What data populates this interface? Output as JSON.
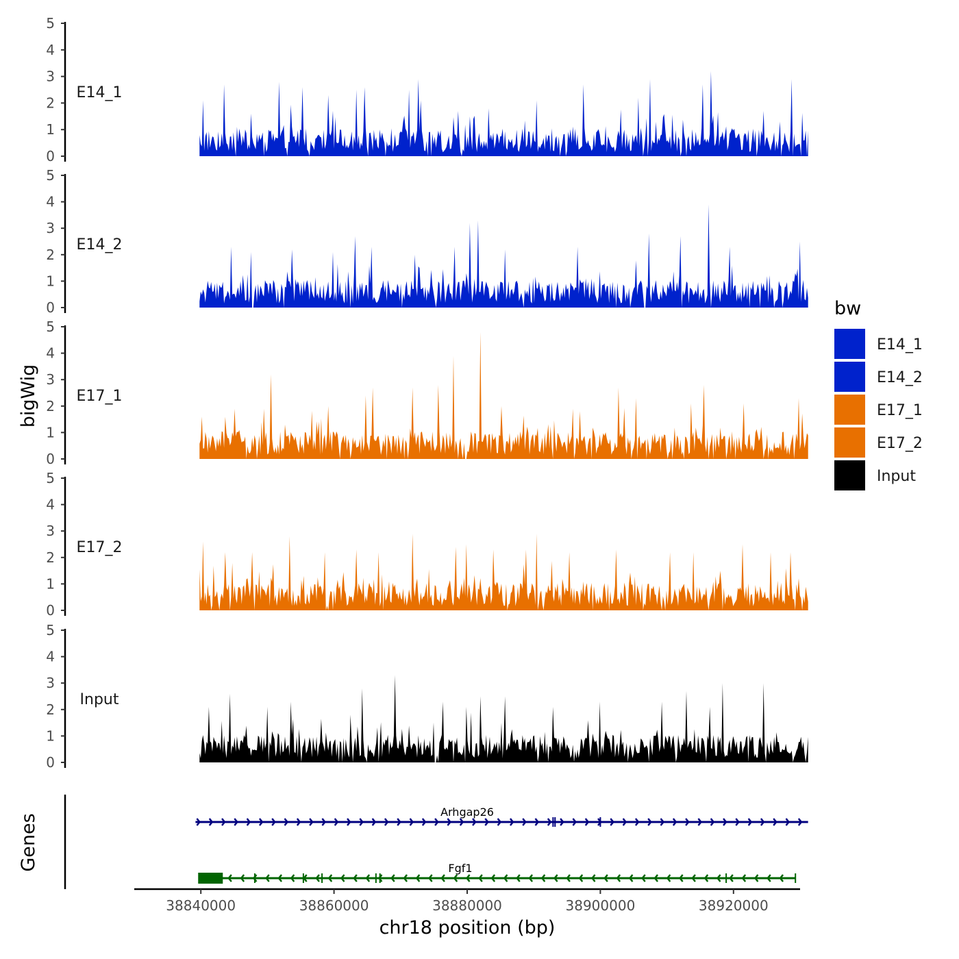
{
  "chart_data": {
    "type": "area",
    "title": "",
    "ylabel": "bigWig",
    "xlabel": "chr18 position (bp)",
    "genes_label": "Genes",
    "ylim": [
      0,
      5
    ],
    "yticks": [
      0,
      1,
      2,
      3,
      4,
      5
    ],
    "xlim": [
      38830000,
      38930000
    ],
    "data_range": [
      38839800,
      38931200
    ],
    "xticks": [
      38840000,
      38860000,
      38880000,
      38900000,
      38920000
    ],
    "xtick_labels": [
      "38840000",
      "38860000",
      "38880000",
      "38900000",
      "38920000"
    ],
    "legend": {
      "title": "bw",
      "entries": [
        {
          "name": "E14_1",
          "color": "#0022CC"
        },
        {
          "name": "E14_2",
          "color": "#0022CC"
        },
        {
          "name": "E17_1",
          "color": "#E87000"
        },
        {
          "name": "E17_2",
          "color": "#E87000"
        },
        {
          "name": "Input",
          "color": "#000000"
        }
      ]
    },
    "series": [
      {
        "name": "E14_1",
        "color": "#0022CC",
        "peaks": [
          {
            "x": 38840300,
            "y": 2.1
          },
          {
            "x": 38843500,
            "y": 2.7
          },
          {
            "x": 38847600,
            "y": 1.6
          },
          {
            "x": 38851700,
            "y": 2.8
          },
          {
            "x": 38855200,
            "y": 2.6
          },
          {
            "x": 38859100,
            "y": 2.3
          },
          {
            "x": 38863400,
            "y": 2.5
          },
          {
            "x": 38864500,
            "y": 2.6
          },
          {
            "x": 38871200,
            "y": 2.5
          },
          {
            "x": 38872600,
            "y": 2.9
          },
          {
            "x": 38873100,
            "y": 2.1
          },
          {
            "x": 38878700,
            "y": 1.7
          },
          {
            "x": 38883200,
            "y": 1.8
          },
          {
            "x": 38890500,
            "y": 2.1
          },
          {
            "x": 38897500,
            "y": 2.7
          },
          {
            "x": 38905700,
            "y": 2.2
          },
          {
            "x": 38907400,
            "y": 2.9
          },
          {
            "x": 38915300,
            "y": 2.7
          },
          {
            "x": 38916600,
            "y": 3.2
          },
          {
            "x": 38924600,
            "y": 1.7
          },
          {
            "x": 38928800,
            "y": 2.9
          }
        ]
      },
      {
        "name": "E14_2",
        "color": "#0022CC",
        "peaks": [
          {
            "x": 38844500,
            "y": 2.3
          },
          {
            "x": 38847600,
            "y": 2.1
          },
          {
            "x": 38853700,
            "y": 2.2
          },
          {
            "x": 38859800,
            "y": 2.1
          },
          {
            "x": 38863200,
            "y": 2.7
          },
          {
            "x": 38865600,
            "y": 2.3
          },
          {
            "x": 38872200,
            "y": 2.0
          },
          {
            "x": 38878100,
            "y": 2.3
          },
          {
            "x": 38880400,
            "y": 3.2
          },
          {
            "x": 38881700,
            "y": 3.3
          },
          {
            "x": 38885600,
            "y": 2.2
          },
          {
            "x": 38896500,
            "y": 2.3
          },
          {
            "x": 38907300,
            "y": 2.8
          },
          {
            "x": 38912100,
            "y": 2.7
          },
          {
            "x": 38916300,
            "y": 3.9
          },
          {
            "x": 38919400,
            "y": 2.3
          },
          {
            "x": 38929900,
            "y": 2.5
          }
        ]
      },
      {
        "name": "E17_1",
        "color": "#E87000",
        "peaks": [
          {
            "x": 38840100,
            "y": 1.6
          },
          {
            "x": 38845100,
            "y": 1.9
          },
          {
            "x": 38849400,
            "y": 1.9
          },
          {
            "x": 38850500,
            "y": 3.2
          },
          {
            "x": 38859200,
            "y": 2.0
          },
          {
            "x": 38864700,
            "y": 2.4
          },
          {
            "x": 38865900,
            "y": 2.7
          },
          {
            "x": 38871800,
            "y": 2.7
          },
          {
            "x": 38875700,
            "y": 2.8
          },
          {
            "x": 38877900,
            "y": 3.9
          },
          {
            "x": 38882000,
            "y": 4.8
          },
          {
            "x": 38885100,
            "y": 2.0
          },
          {
            "x": 38895900,
            "y": 1.9
          },
          {
            "x": 38902800,
            "y": 2.7
          },
          {
            "x": 38905300,
            "y": 2.3
          },
          {
            "x": 38913700,
            "y": 2.1
          },
          {
            "x": 38915500,
            "y": 2.8
          },
          {
            "x": 38921600,
            "y": 2.1
          },
          {
            "x": 38929800,
            "y": 2.3
          }
        ]
      },
      {
        "name": "E17_2",
        "color": "#E87000",
        "peaks": [
          {
            "x": 38840300,
            "y": 2.6
          },
          {
            "x": 38843700,
            "y": 2.2
          },
          {
            "x": 38847700,
            "y": 2.2
          },
          {
            "x": 38853400,
            "y": 2.8
          },
          {
            "x": 38858600,
            "y": 2.2
          },
          {
            "x": 38863400,
            "y": 2.3
          },
          {
            "x": 38866700,
            "y": 2.2
          },
          {
            "x": 38871800,
            "y": 2.9
          },
          {
            "x": 38878300,
            "y": 2.4
          },
          {
            "x": 38879800,
            "y": 2.5
          },
          {
            "x": 38883900,
            "y": 2.3
          },
          {
            "x": 38888800,
            "y": 2.3
          },
          {
            "x": 38890500,
            "y": 2.9
          },
          {
            "x": 38895400,
            "y": 2.2
          },
          {
            "x": 38902300,
            "y": 2.3
          },
          {
            "x": 38910500,
            "y": 2.2
          },
          {
            "x": 38913900,
            "y": 2.2
          },
          {
            "x": 38921300,
            "y": 2.5
          },
          {
            "x": 38925600,
            "y": 2.2
          },
          {
            "x": 38928600,
            "y": 2.2
          }
        ]
      },
      {
        "name": "Input",
        "color": "#000000",
        "peaks": [
          {
            "x": 38841200,
            "y": 2.1
          },
          {
            "x": 38844300,
            "y": 2.6
          },
          {
            "x": 38850000,
            "y": 2.1
          },
          {
            "x": 38853500,
            "y": 2.3
          },
          {
            "x": 38862400,
            "y": 1.8
          },
          {
            "x": 38864200,
            "y": 2.8
          },
          {
            "x": 38869200,
            "y": 3.3
          },
          {
            "x": 38876400,
            "y": 2.3
          },
          {
            "x": 38879800,
            "y": 2.1
          },
          {
            "x": 38882000,
            "y": 2.5
          },
          {
            "x": 38885700,
            "y": 2.5
          },
          {
            "x": 38892900,
            "y": 2.1
          },
          {
            "x": 38900000,
            "y": 2.3
          },
          {
            "x": 38909200,
            "y": 2.3
          },
          {
            "x": 38913000,
            "y": 2.7
          },
          {
            "x": 38916500,
            "y": 2.1
          },
          {
            "x": 38918300,
            "y": 3.0
          },
          {
            "x": 38924600,
            "y": 3.0
          }
        ]
      }
    ],
    "genes": [
      {
        "name": "Arhgap26",
        "strand": "+",
        "start": 38839200,
        "end": 38931200,
        "color": "#00007F",
        "exons": [
          38892900,
          38893200,
          38900000
        ]
      },
      {
        "name": "Fgf1",
        "strand": "-",
        "start": 38839800,
        "end": 38929300,
        "color": "#006400",
        "utr_start": 38839800,
        "utr_end": 38843300,
        "exons": [
          38848100,
          38855400,
          38858200,
          38866300,
          38866900,
          38918900,
          38929300
        ]
      }
    ]
  }
}
